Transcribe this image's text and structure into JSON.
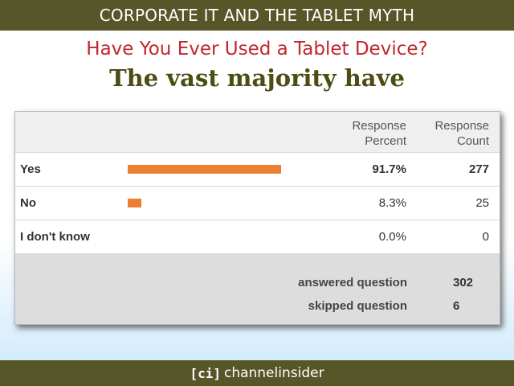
{
  "banner": {
    "title": "CORPORATE IT AND THE TABLET MYTH"
  },
  "heading": "Have You Ever Used a Tablet Device?",
  "subheading": "The vast majority have",
  "chart_data": {
    "type": "table",
    "columns": [
      "Response Percent",
      "Response Count"
    ],
    "rows": [
      {
        "label": "Yes",
        "percent": 91.7,
        "percent_text": "91.7%",
        "count": "277",
        "bold": true
      },
      {
        "label": "No",
        "percent": 8.3,
        "percent_text": "8.3%",
        "count": "25",
        "bold": false
      },
      {
        "label": "I don't know",
        "percent": 0.0,
        "percent_text": "0.0%",
        "count": "0",
        "bold": false
      }
    ],
    "bar_color": "#ed7d31",
    "summary": [
      {
        "label": "answered question",
        "value": "302"
      },
      {
        "label": "skipped question",
        "value": "6"
      }
    ]
  },
  "footer": {
    "logo_mark": "[ci]",
    "logo_text": "channelinsider"
  }
}
